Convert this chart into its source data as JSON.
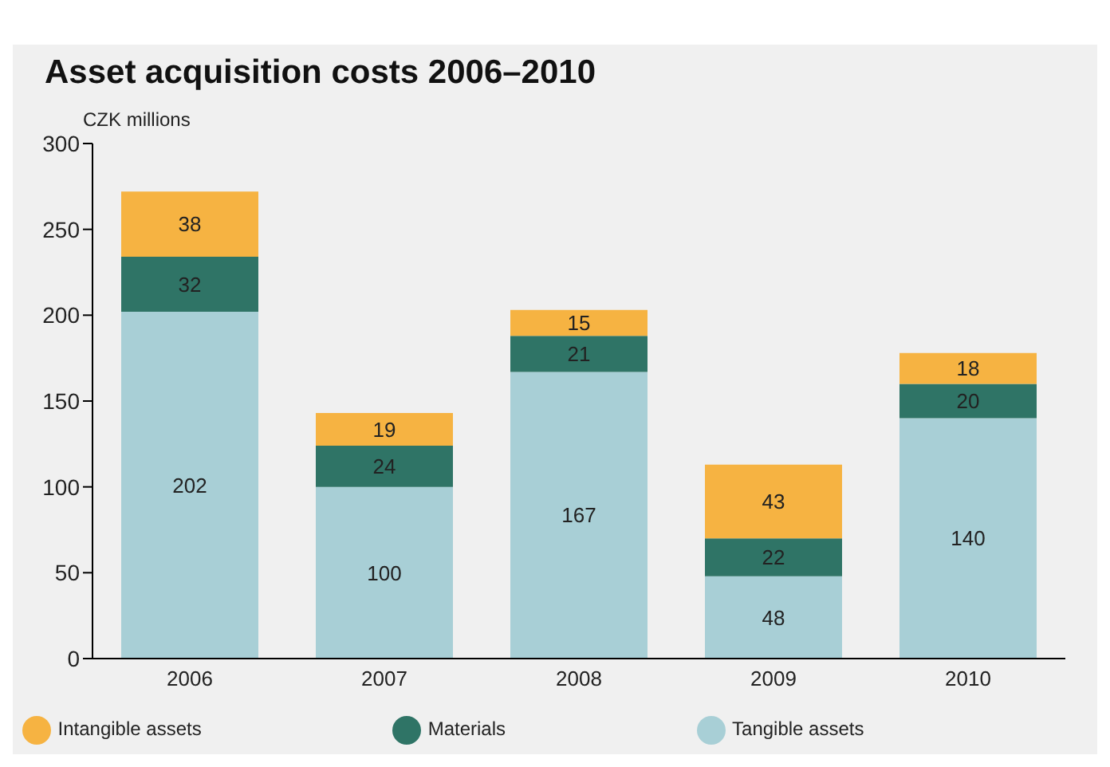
{
  "chart_data": {
    "type": "bar",
    "title": "Asset acquisition costs 2006–2010",
    "ylabel": "CZK millions",
    "categories": [
      "2006",
      "2007",
      "2008",
      "2009",
      "2010"
    ],
    "stacked": true,
    "data_labels": true,
    "grid": false,
    "legend": "bottom",
    "ylim": [
      0,
      300
    ],
    "yticks": [
      0,
      50,
      100,
      150,
      200,
      250,
      300
    ],
    "series": [
      {
        "name": "Tangible assets",
        "color": "#a8cfd6",
        "values": [
          202,
          100,
          167,
          48,
          140
        ]
      },
      {
        "name": "Materials",
        "color": "#2f7466",
        "values": [
          32,
          24,
          21,
          22,
          20
        ]
      },
      {
        "name": "Intangible assets",
        "color": "#f6b342",
        "values": [
          38,
          19,
          15,
          43,
          18
        ]
      }
    ]
  }
}
